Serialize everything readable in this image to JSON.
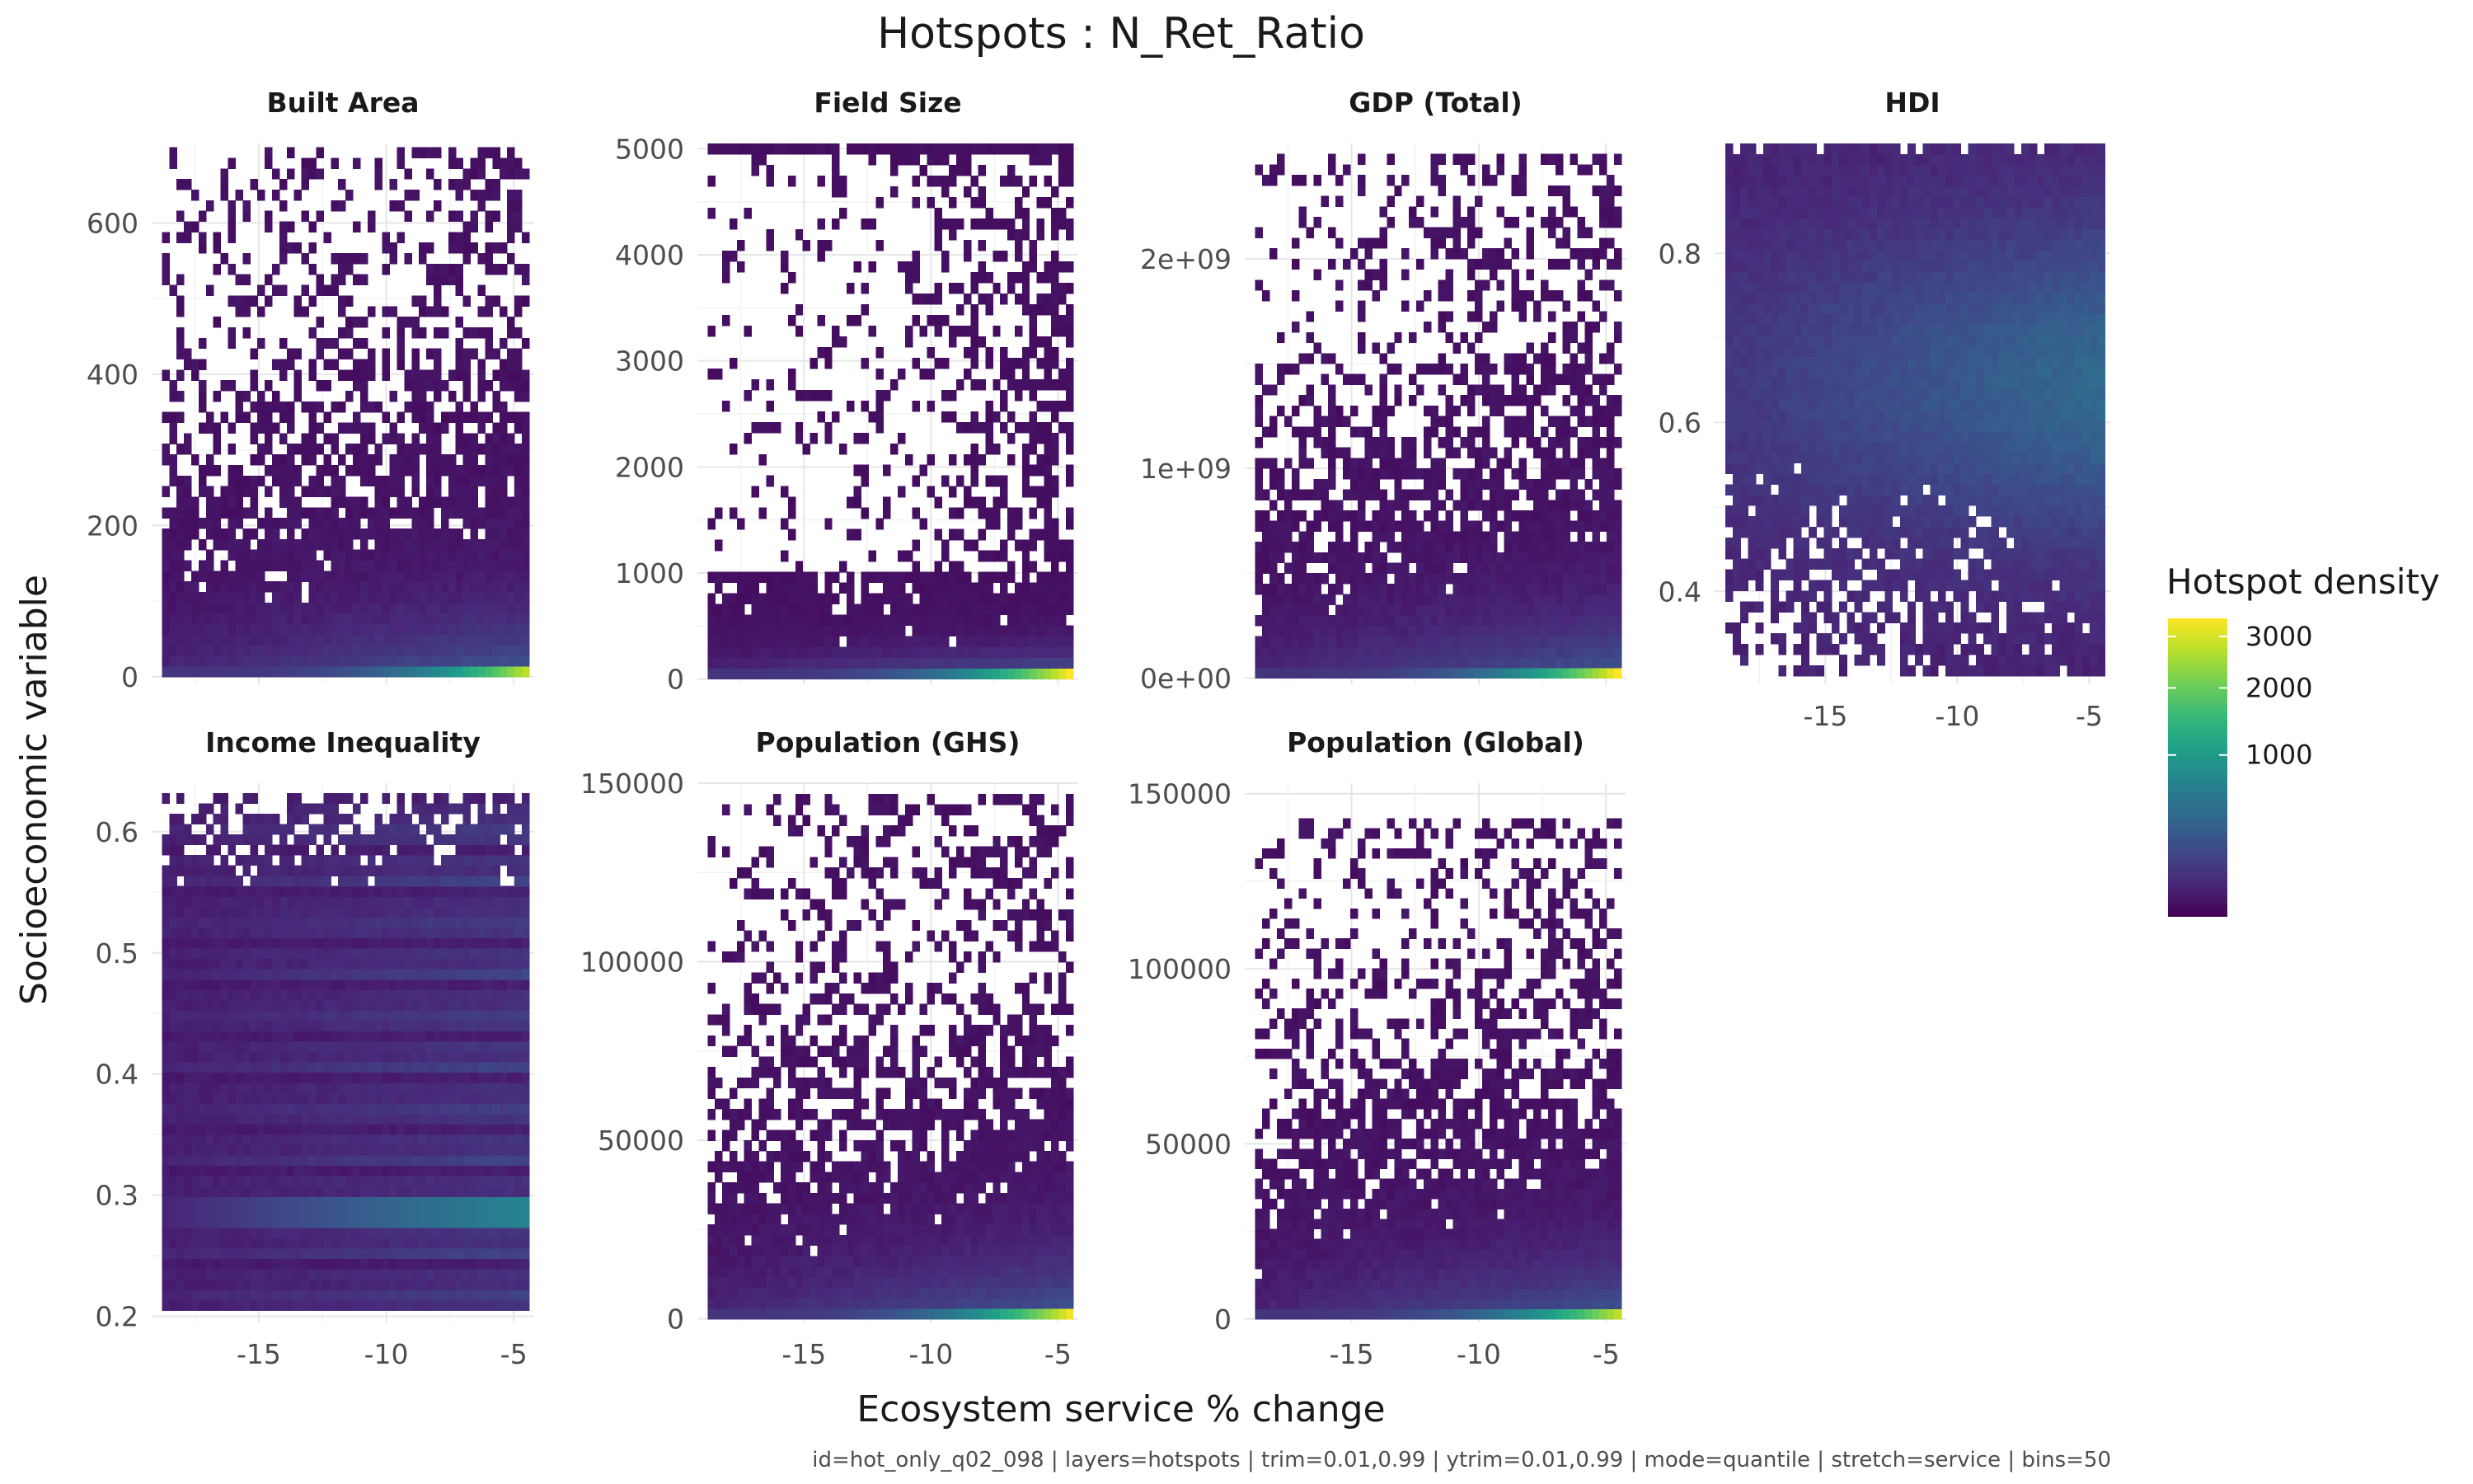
{
  "colors": {
    "viridis": [
      "#440154",
      "#482878",
      "#3e4989",
      "#31688e",
      "#26828e",
      "#1f9e89",
      "#35b779",
      "#6ece58",
      "#b5de2b",
      "#fde725"
    ],
    "grid": "#ebebeb",
    "text": "#1a1a1a",
    "tick_text": "#4d4d4d"
  },
  "chart_data": {
    "type": "heatmap",
    "title": "Hotspots : N_Ret_Ratio",
    "xlabel": "Ecosystem service % change",
    "ylabel": "Socioeconomic variable",
    "caption": "id=hot_only_q02_098 | layers=hotspots | trim=0.01,0.99 | ytrim=0.01,0.99 | mode=quantile | stretch=service | bins=50",
    "legend": {
      "title": "Hotspot density",
      "range": [
        1,
        3400
      ],
      "ticks": [
        {
          "value": 1000,
          "label": "1000"
        },
        {
          "value": 2000,
          "label": "2000"
        },
        {
          "value": 3000,
          "label": "3000"
        }
      ],
      "position": "right"
    },
    "xlim": [
      -19.2,
      -4.2
    ],
    "bin_x_range": [
      -18.8,
      -4.4
    ],
    "x_ticks": [
      {
        "value": -15,
        "label": "-15"
      },
      {
        "value": -10,
        "label": "-10"
      },
      {
        "value": -5,
        "label": "-5"
      }
    ],
    "panels": [
      {
        "name": "Built Area",
        "ylim": [
          -10,
          705
        ],
        "bin_y_range": [
          0,
          700
        ],
        "density_range": [
          0,
          700
        ],
        "y_ticks": [
          {
            "value": 0,
            "label": "0"
          },
          {
            "value": 200,
            "label": "200"
          },
          {
            "value": 400,
            "label": "400"
          },
          {
            "value": 600,
            "label": "600"
          }
        ],
        "pattern": "skew_low",
        "bottom_hot": 3000,
        "show_x_ticks": false
      },
      {
        "name": "Field Size",
        "ylim": [
          -50,
          5050
        ],
        "bin_y_range": [
          0,
          5050
        ],
        "density_range": [
          0,
          1050
        ],
        "y_ticks": [
          {
            "value": 0,
            "label": "0"
          },
          {
            "value": 1000,
            "label": "1000"
          },
          {
            "value": 2000,
            "label": "2000"
          },
          {
            "value": 3000,
            "label": "3000"
          },
          {
            "value": 4000,
            "label": "4000"
          },
          {
            "value": 5000,
            "label": "5000"
          }
        ],
        "pattern": "field_size",
        "bottom_hot": 3200,
        "show_x_ticks": false
      },
      {
        "name": "GDP (Total)",
        "ylim": [
          -30000000.0,
          2550000000.0
        ],
        "bin_y_range": [
          0,
          2500000000.0
        ],
        "density_range": [
          0,
          2500000000.0
        ],
        "y_ticks": [
          {
            "value": 0,
            "label": "0e+00"
          },
          {
            "value": 1000000000,
            "label": "1e+09"
          },
          {
            "value": 2000000000,
            "label": "2e+09"
          }
        ],
        "pattern": "skew_low",
        "bottom_hot": 3400,
        "show_x_ticks": false
      },
      {
        "name": "HDI",
        "ylim": [
          0.29,
          0.93
        ],
        "bin_y_range": [
          0.3,
          0.93
        ],
        "density_range": [
          0.3,
          0.93
        ],
        "y_ticks": [
          {
            "value": 0.4,
            "label": "0.4"
          },
          {
            "value": 0.6,
            "label": "0.6"
          },
          {
            "value": 0.8,
            "label": "0.8"
          }
        ],
        "pattern": "hdi",
        "bottom_hot": 0,
        "show_x_ticks": true
      },
      {
        "name": "Income Inequality",
        "ylim": [
          0.195,
          0.64
        ],
        "bin_y_range": [
          0.205,
          0.632
        ],
        "density_range": [
          0.205,
          0.632
        ],
        "y_ticks": [
          {
            "value": 0.2,
            "label": "0.2"
          },
          {
            "value": 0.3,
            "label": "0.3"
          },
          {
            "value": 0.4,
            "label": "0.4"
          },
          {
            "value": 0.5,
            "label": "0.5"
          },
          {
            "value": 0.6,
            "label": "0.6"
          }
        ],
        "pattern": "inequality",
        "bottom_hot": 0,
        "show_x_ticks": true
      },
      {
        "name": "Population (GHS)",
        "ylim": [
          -1000,
          150000
        ],
        "bin_y_range": [
          0,
          147000
        ],
        "density_range": [
          0,
          147000
        ],
        "y_ticks": [
          {
            "value": 0,
            "label": "0"
          },
          {
            "value": 50000,
            "label": "50000"
          },
          {
            "value": 100000,
            "label": "100000"
          },
          {
            "value": 150000,
            "label": "150000"
          }
        ],
        "pattern": "skew_low",
        "bottom_hot": 3300,
        "show_x_ticks": true
      },
      {
        "name": "Population (Global)",
        "ylim": [
          -1000,
          153000
        ],
        "bin_y_range": [
          0,
          143000
        ],
        "density_range": [
          0,
          143000
        ],
        "y_ticks": [
          {
            "value": 0,
            "label": "0"
          },
          {
            "value": 50000,
            "label": "50000"
          },
          {
            "value": 100000,
            "label": "100000"
          },
          {
            "value": 150000,
            "label": "150000"
          }
        ],
        "pattern": "skew_low",
        "bottom_hot": 3000,
        "show_x_ticks": true
      }
    ]
  }
}
